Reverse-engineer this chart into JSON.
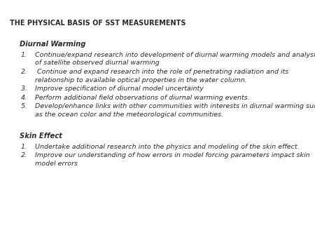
{
  "background_color": "#ffffff",
  "text_color": "#2a2a2a",
  "title": "THE PHYSICAL BASIS OF SST MEASUREMENTS",
  "title_fontsize": 7.0,
  "section_fontsize": 7.2,
  "item_fontsize": 6.8,
  "section1_header": "Diurnal Warming",
  "section1_items": [
    [
      "Continue/expand research into development of diurnal warming models and analysis",
      "of satellite observed diurnal warming"
    ],
    [
      " Continue and expand research into the role of penetrating radiation and its",
      "relationship to available optical properties in the water column."
    ],
    [
      "Improve specification of diurnal model uncertainty"
    ],
    [
      "Perform additional field observations of diurnal warming events."
    ],
    [
      "Develop/enhance links with other communities with interests in diurnal warming such",
      "as the ocean color and the meteorological communities."
    ]
  ],
  "section2_header": "Skin Effect",
  "section2_items": [
    [
      "Undertake additional research into the physics and modeling of the skin effect."
    ],
    [
      "Improve our understanding of how errors in model forcing parameters impact skin",
      "model errors"
    ]
  ]
}
